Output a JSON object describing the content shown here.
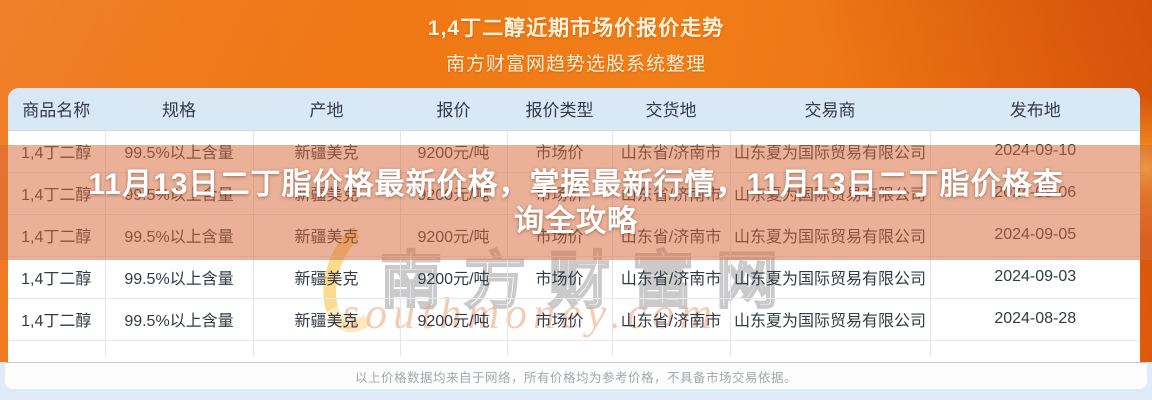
{
  "banner": {
    "line1": "1,4丁二醇近期市场价报价走势",
    "line2": "南方财富网趋势选股系统整理"
  },
  "overlay": {
    "title": "11月13日二丁脂价格最新价格，掌握最新行情，11月13日二丁脂价格查询全攻略"
  },
  "watermark": {
    "cn": "南方财富网",
    "en": "southmoney.com"
  },
  "table": {
    "headers": [
      "商品名称",
      "规格",
      "产地",
      "报价",
      "报价类型",
      "交货地",
      "交易商",
      "发布地"
    ],
    "rows": [
      [
        "1,4丁二醇",
        "99.5%以上含量",
        "新疆美克",
        "9200元/吨",
        "市场价",
        "山东省/济南市",
        "山东夏为国际贸易有限公司",
        "2024-09-10"
      ],
      [
        "1,4丁二醇",
        "99.5%以上含量",
        "新疆美克",
        "9200元/吨",
        "市场价",
        "山东省/济南市",
        "山东夏为国际贸易有限公司",
        "2024-09-06"
      ],
      [
        "1,4丁二醇",
        "99.5%以上含量",
        "新疆美克",
        "9200元/吨",
        "市场价",
        "山东省/济南市",
        "山东夏为国际贸易有限公司",
        "2024-09-05"
      ],
      [
        "1,4丁二醇",
        "99.5%以上含量",
        "新疆美克",
        "9200元/吨",
        "市场价",
        "山东省/济南市",
        "山东夏为国际贸易有限公司",
        "2024-09-03"
      ],
      [
        "1,4丁二醇",
        "99.5%以上含量",
        "新疆美克",
        "9200元/吨",
        "市场价",
        "山东省/济南市",
        "山东夏为国际贸易有限公司",
        "2024-08-28"
      ]
    ]
  },
  "footer": {
    "disclaimer": "以上价格数据均来自于网络，所有价格均为参考价格，不具备市场交易依据。"
  },
  "colors": {
    "accent_orange": "#ee6f0e",
    "header_band_blue": "#d9e8f5",
    "overlay_tint": "#d66a3a",
    "bottom_strip_blue": "#e0ebf6",
    "title_text": "#ffffff",
    "banner_text": "#fdf2da"
  },
  "chart_data": {
    "type": "table",
    "title": "1,4丁二醇近期市场价报价走势",
    "subtitle": "南方财富网趋势选股系统整理",
    "columns": [
      "商品名称",
      "规格",
      "产地",
      "报价",
      "报价类型",
      "交货地",
      "交易商",
      "发布地"
    ],
    "rows": [
      [
        "1,4丁二醇",
        "99.5%以上含量",
        "新疆美克",
        "9200元/吨",
        "市场价",
        "山东省/济南市",
        "山东夏为国际贸易有限公司",
        "2024-09-10"
      ],
      [
        "1,4丁二醇",
        "99.5%以上含量",
        "新疆美克",
        "9200元/吨",
        "市场价",
        "山东省/济南市",
        "山东夏为国际贸易有限公司",
        "2024-09-06"
      ],
      [
        "1,4丁二醇",
        "99.5%以上含量",
        "新疆美克",
        "9200元/吨",
        "市场价",
        "山东省/济南市",
        "山东夏为国际贸易有限公司",
        "2024-09-05"
      ],
      [
        "1,4丁二醇",
        "99.5%以上含量",
        "新疆美克",
        "9200元/吨",
        "市场价",
        "山东省/济南市",
        "山东夏为国际贸易有限公司",
        "2024-09-03"
      ],
      [
        "1,4丁二醇",
        "99.5%以上含量",
        "新疆美克",
        "9200元/吨",
        "市场价",
        "山东省/济南市",
        "山东夏为国际贸易有限公司",
        "2024-08-28"
      ]
    ],
    "price_series": {
      "unit": "元/吨",
      "dates": [
        "2024-08-28",
        "2024-09-03",
        "2024-09-05",
        "2024-09-06",
        "2024-09-10"
      ],
      "values": [
        9200,
        9200,
        9200,
        9200,
        9200
      ]
    }
  }
}
